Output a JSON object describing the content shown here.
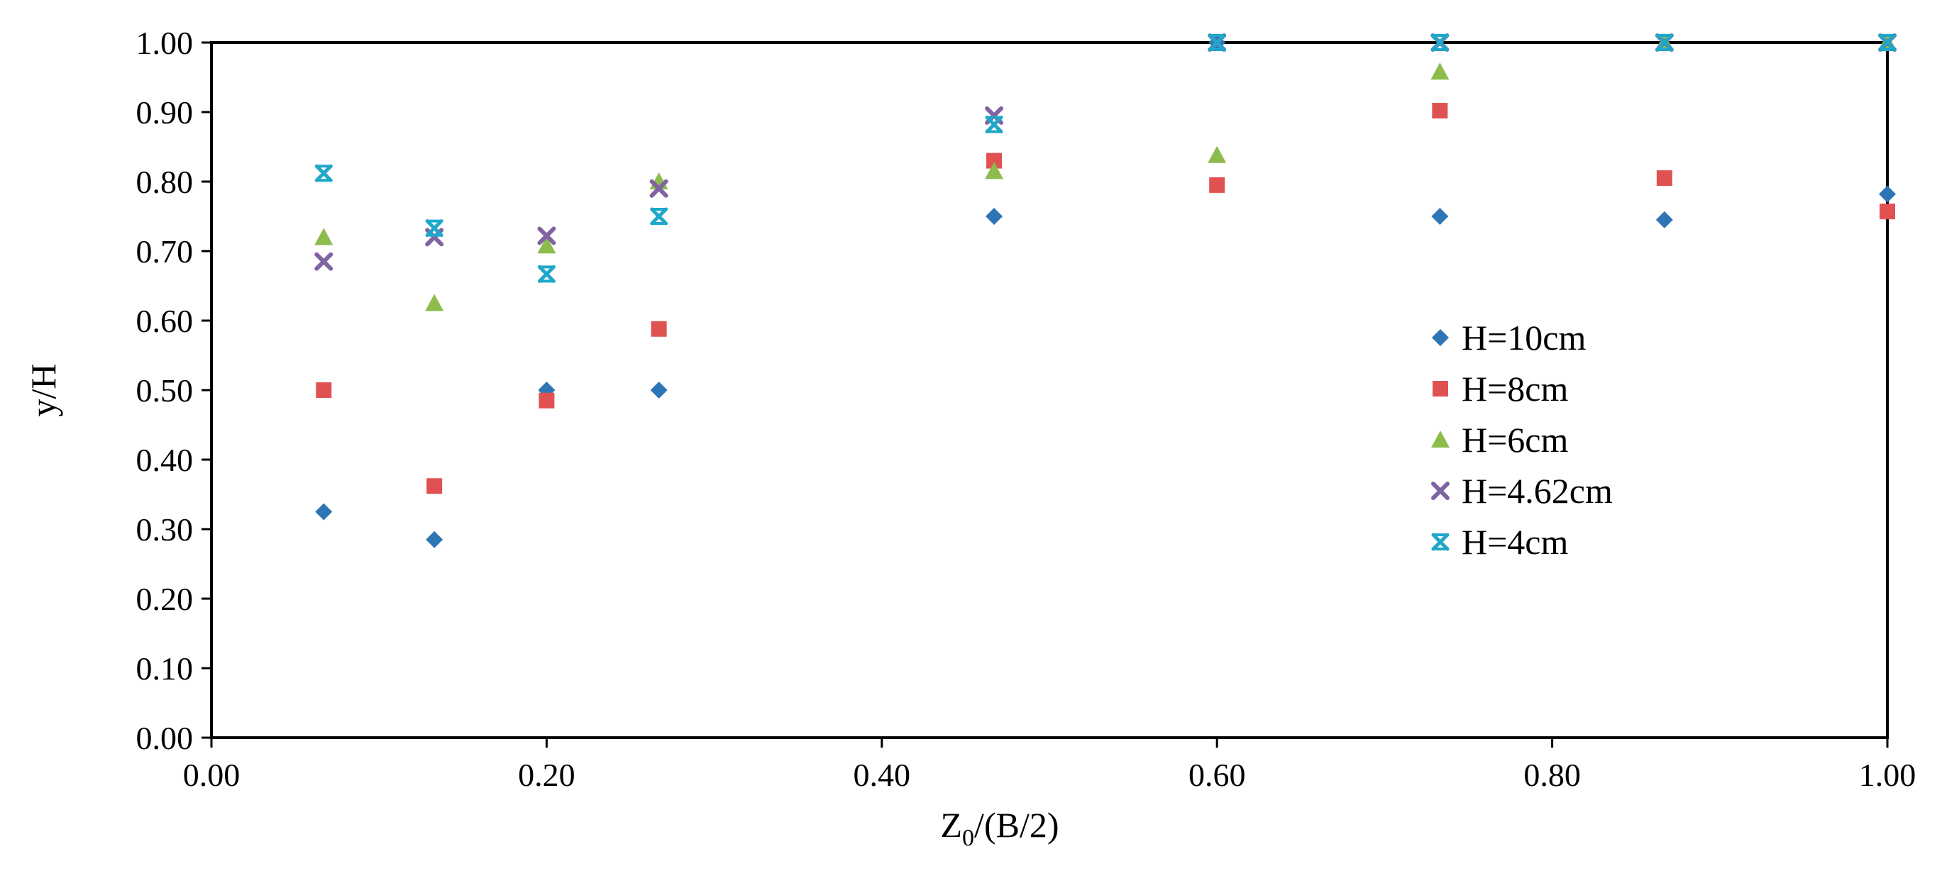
{
  "chart_data": {
    "type": "scatter",
    "title": "",
    "xlabel_main": "Z",
    "xlabel_sub": "0",
    "xlabel_rest": "/(B/2)",
    "ylabel": "y/H",
    "xlim": [
      0,
      1
    ],
    "ylim": [
      0,
      1
    ],
    "x_ticks": [
      0,
      0.2,
      0.4,
      0.6,
      0.8,
      1.0
    ],
    "x_tick_labels": [
      "0.00",
      "0.20",
      "0.40",
      "0.60",
      "0.80",
      "1.00"
    ],
    "y_ticks": [
      0,
      0.1,
      0.2,
      0.3,
      0.4,
      0.5,
      0.6,
      0.7,
      0.8,
      0.9,
      1.0
    ],
    "y_tick_labels": [
      "0.00",
      "0.10",
      "0.20",
      "0.30",
      "0.40",
      "0.50",
      "0.60",
      "0.70",
      "0.80",
      "0.90",
      "1.00"
    ],
    "grid": false,
    "legend_position": "center-right",
    "series": [
      {
        "name": "H=10cm",
        "marker": "diamond",
        "color": "#2E75B6",
        "x": [
          0.067,
          0.133,
          0.2,
          0.267,
          0.467,
          0.6,
          0.733,
          0.867,
          1.0
        ],
        "y": [
          0.325,
          0.285,
          0.5,
          0.5,
          0.75,
          1.0,
          0.75,
          0.745,
          0.782
        ]
      },
      {
        "name": "H=8cm",
        "marker": "square",
        "color": "#E05252",
        "x": [
          0.067,
          0.133,
          0.2,
          0.267,
          0.467,
          0.6,
          0.733,
          0.867,
          1.0
        ],
        "y": [
          0.5,
          0.362,
          0.485,
          0.588,
          0.83,
          0.795,
          0.902,
          0.805,
          0.757
        ]
      },
      {
        "name": "H=6cm",
        "marker": "triangle",
        "color": "#8DBB4C",
        "x": [
          0.067,
          0.133,
          0.2,
          0.267,
          0.467,
          0.6,
          0.733,
          0.867,
          1.0
        ],
        "y": [
          0.72,
          0.625,
          0.708,
          0.8,
          0.815,
          0.838,
          0.958,
          1.0,
          1.0
        ]
      },
      {
        "name": "H=4.62cm",
        "marker": "x",
        "color": "#8064A2",
        "x": [
          0.067,
          0.133,
          0.2,
          0.267,
          0.467,
          0.6,
          0.733,
          0.867,
          1.0
        ],
        "y": [
          0.685,
          0.72,
          0.722,
          0.79,
          0.895,
          1.0,
          1.0,
          1.0,
          1.0
        ]
      },
      {
        "name": "H=4cm",
        "marker": "asterisk",
        "color": "#1FA7C9",
        "x": [
          0.067,
          0.133,
          0.2,
          0.267,
          0.467,
          0.6,
          0.733,
          0.867,
          1.0
        ],
        "y": [
          0.812,
          0.733,
          0.667,
          0.75,
          0.882,
          1.0,
          1.0,
          1.0,
          1.0
        ]
      }
    ]
  }
}
